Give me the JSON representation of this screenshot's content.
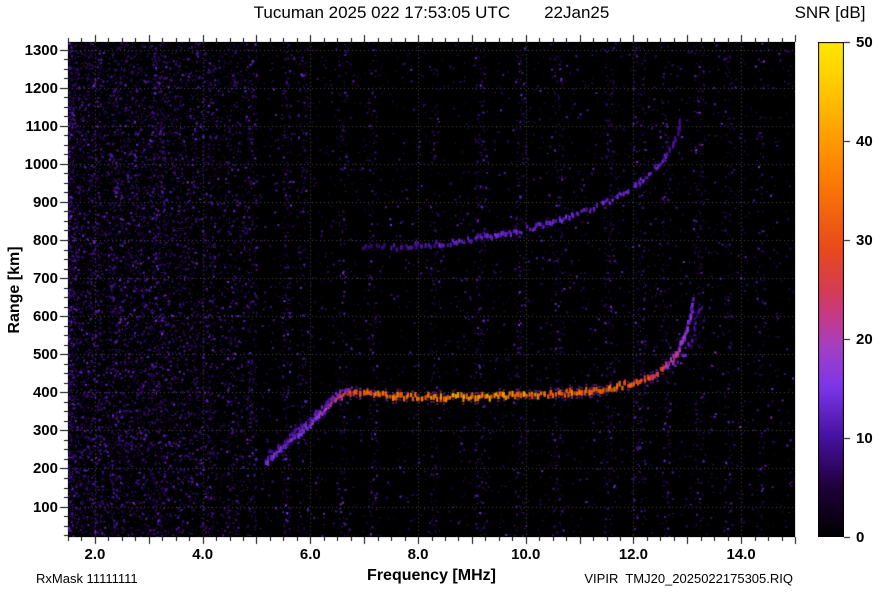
{
  "header": {
    "title_main": "Tucuman 2025 022 17:53:05 UTC",
    "title_date": "22Jan25",
    "colorbar_title": "SNR [dB]"
  },
  "footer": {
    "rx_mask": "RxMask 11111111",
    "file_label": "VIPIR  TMJ20_2025022175305.RIQ"
  },
  "axes": {
    "x_label": "Frequency [MHz]",
    "y_label": "Range [km]",
    "x_tick_labels": [
      "2.0",
      "4.0",
      "6.0",
      "8.0",
      "10.0",
      "12.0",
      "14.0"
    ],
    "y_tick_labels": [
      "100",
      "200",
      "300",
      "400",
      "500",
      "600",
      "700",
      "800",
      "900",
      "1000",
      "1100",
      "1200",
      "1300"
    ],
    "cbar_tick_labels": [
      "0",
      "10",
      "20",
      "30",
      "40",
      "50"
    ]
  },
  "chart_data": {
    "type": "heatmap",
    "title": "Tucuman 2025 022 17:53:05 UTC 22Jan25",
    "xlabel": "Frequency [MHz]",
    "ylabel": "Range [km]",
    "colorbar_label": "SNR [dB]",
    "xlim": [
      1.5,
      15.0
    ],
    "ylim": [
      20,
      1320
    ],
    "clim": [
      0,
      50
    ],
    "xticks": [
      2,
      4,
      6,
      8,
      10,
      12,
      14
    ],
    "xticks_minor_step": 0.25,
    "yticks": [
      100,
      200,
      300,
      400,
      500,
      600,
      700,
      800,
      900,
      1000,
      1100,
      1200,
      1300
    ],
    "yticks_minor_step": 25,
    "cbar_ticks": [
      0,
      10,
      20,
      30,
      40,
      50
    ],
    "grid": true,
    "colormap": [
      [
        0.0,
        "#000000"
      ],
      [
        0.1,
        "#20003a"
      ],
      [
        0.2,
        "#46109e"
      ],
      [
        0.3,
        "#7a35e8"
      ],
      [
        0.38,
        "#a23fc6"
      ],
      [
        0.44,
        "#c43a8e"
      ],
      [
        0.5,
        "#d63b52"
      ],
      [
        0.58,
        "#e8491c"
      ],
      [
        0.7,
        "#f97306"
      ],
      [
        0.8,
        "#ff9a00"
      ],
      [
        0.9,
        "#ffc400"
      ],
      [
        1.0,
        "#ffe800"
      ]
    ],
    "noise": {
      "base_count": 5200,
      "base_v": [
        0.1,
        0.3
      ],
      "lowfreq_count": 6500,
      "lowfreq_fmax": 5.0,
      "lowfreq_pow": 1.7,
      "stripe_v": [
        0.12,
        0.32
      ],
      "stripes": [
        [
          2.0,
          0.15,
          260
        ],
        [
          2.35,
          0.12,
          200
        ],
        [
          2.8,
          0.5,
          1100
        ],
        [
          3.35,
          0.3,
          620
        ],
        [
          3.8,
          0.12,
          220
        ],
        [
          4.1,
          0.12,
          260
        ],
        [
          4.55,
          0.1,
          200
        ],
        [
          4.9,
          0.1,
          220
        ],
        [
          5.55,
          0.08,
          330
        ],
        [
          5.85,
          0.1,
          240
        ],
        [
          6.6,
          0.08,
          170
        ],
        [
          7.15,
          0.08,
          160
        ],
        [
          8.3,
          0.08,
          150
        ],
        [
          9.15,
          0.1,
          260
        ],
        [
          9.9,
          0.1,
          240
        ],
        [
          10.6,
          0.08,
          190
        ],
        [
          11.55,
          0.1,
          240
        ],
        [
          12.1,
          0.12,
          290
        ],
        [
          12.6,
          0.08,
          170
        ],
        [
          13.2,
          0.1,
          230
        ],
        [
          13.75,
          0.08,
          170
        ],
        [
          14.35,
          0.08,
          150
        ]
      ]
    },
    "traces": [
      {
        "name": "f-layer-first-hop-o-mode",
        "thickness": 5,
        "density": 1.0,
        "jitter_r": 5,
        "points": [
          [
            5.15,
            215,
            13
          ],
          [
            5.4,
            245,
            14
          ],
          [
            5.65,
            275,
            15
          ],
          [
            5.9,
            305,
            16
          ],
          [
            6.1,
            335,
            17
          ],
          [
            6.3,
            365,
            19
          ],
          [
            6.5,
            388,
            23
          ],
          [
            6.7,
            397,
            27
          ],
          [
            7.0,
            396,
            31
          ],
          [
            7.5,
            391,
            34
          ],
          [
            8.0,
            388,
            36
          ],
          [
            8.5,
            387,
            37
          ],
          [
            9.0,
            388,
            37
          ],
          [
            9.5,
            390,
            37
          ],
          [
            10.0,
            392,
            36
          ],
          [
            10.5,
            396,
            35
          ],
          [
            11.0,
            401,
            34
          ],
          [
            11.4,
            408,
            33
          ],
          [
            11.8,
            418,
            31
          ],
          [
            12.1,
            430,
            29
          ],
          [
            12.35,
            444,
            27
          ],
          [
            12.55,
            462,
            25
          ],
          [
            12.7,
            483,
            22
          ],
          [
            12.82,
            508,
            20
          ],
          [
            12.92,
            538,
            18
          ],
          [
            13.0,
            572,
            16
          ],
          [
            13.06,
            608,
            14
          ],
          [
            13.1,
            645,
            13
          ]
        ]
      },
      {
        "name": "f-layer-x-branch-low",
        "thickness": 3,
        "density": 0.8,
        "jitter_r": 4,
        "points": [
          [
            5.2,
            238,
            10
          ],
          [
            5.45,
            266,
            10
          ],
          [
            5.7,
            295,
            11
          ],
          [
            5.95,
            324,
            11
          ],
          [
            6.15,
            352,
            12
          ],
          [
            6.35,
            380,
            12
          ],
          [
            6.55,
            402,
            13
          ],
          [
            6.78,
            410,
            12
          ]
        ]
      },
      {
        "name": "f-layer-x-branch-high",
        "thickness": 3,
        "density": 0.55,
        "jitter_r": 8,
        "points": [
          [
            12.6,
            452,
            15
          ],
          [
            12.78,
            472,
            14
          ],
          [
            12.92,
            497,
            13
          ],
          [
            13.03,
            527,
            12
          ],
          [
            13.11,
            562,
            11
          ],
          [
            13.17,
            602,
            10
          ],
          [
            13.22,
            642,
            10
          ]
        ]
      },
      {
        "name": "f-layer-second-hop",
        "thickness": 4,
        "density": 0.85,
        "jitter_r": 5,
        "points": [
          [
            6.95,
            783,
            8
          ],
          [
            7.3,
            780,
            9
          ],
          [
            7.7,
            782,
            10
          ],
          [
            8.1,
            786,
            11
          ],
          [
            8.5,
            792,
            12
          ],
          [
            9.0,
            801,
            12
          ],
          [
            9.5,
            813,
            13
          ],
          [
            10.0,
            828,
            13
          ],
          [
            10.5,
            847,
            13
          ],
          [
            11.0,
            870,
            13
          ],
          [
            11.4,
            893,
            13
          ],
          [
            11.8,
            922,
            13
          ],
          [
            12.1,
            952,
            13
          ],
          [
            12.35,
            983,
            12
          ],
          [
            12.55,
            1015,
            12
          ],
          [
            12.7,
            1048,
            11
          ],
          [
            12.8,
            1082,
            10
          ],
          [
            12.88,
            1118,
            9
          ]
        ]
      }
    ]
  }
}
